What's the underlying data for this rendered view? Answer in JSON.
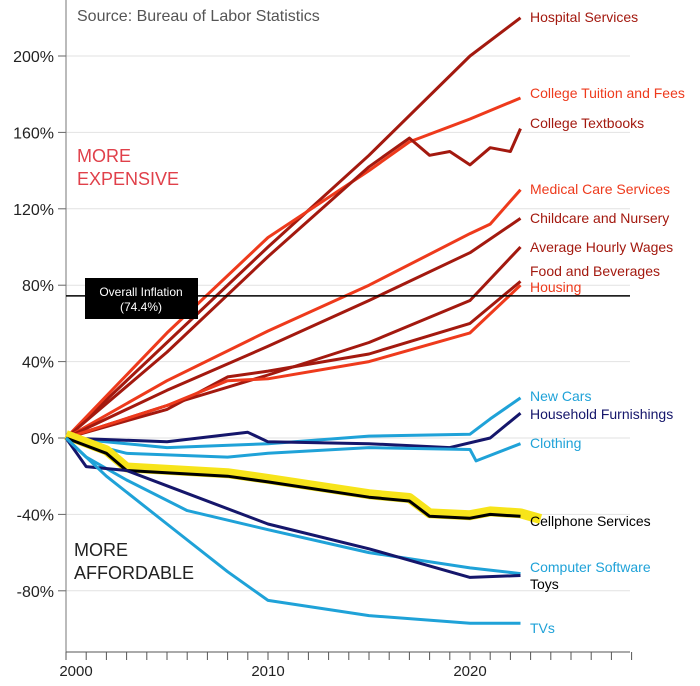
{
  "chart_data": {
    "type": "line",
    "source": "Source: Bureau of Labor Statistics",
    "annotations": {
      "up": [
        "MORE",
        "EXPENSIVE"
      ],
      "down": [
        "MORE",
        "AFFORDABLE"
      ]
    },
    "reference_line": {
      "label": "Overall Inflation",
      "value_label": "(74.4%)",
      "value": 74.4
    },
    "xlim": [
      2000,
      2028
    ],
    "ylim": [
      -110,
      230
    ],
    "x_ticks": [
      2000,
      2010,
      2020
    ],
    "y_ticks": [
      -80,
      -40,
      0,
      40,
      80,
      120,
      160,
      200
    ],
    "y_tick_labels": [
      "-80%",
      "-40%",
      "0%",
      "40%",
      "80%",
      "120%",
      "160%",
      "200%"
    ],
    "grid": "horizontal",
    "colors": {
      "dark_red": "#a3190f",
      "red": "#ee3a1c",
      "light_blue": "#1fa2d8",
      "navy": "#15166b",
      "black": "#000000",
      "highlight": "#f7e41a"
    },
    "series": [
      {
        "name": "Hospital Services",
        "color": "dark_red",
        "x": [
          2000,
          2005,
          2010,
          2015,
          2020,
          2022.5
        ],
        "y": [
          0,
          50,
          100,
          148,
          200,
          220
        ]
      },
      {
        "name": "College Tuition and Fees",
        "color": "red",
        "x": [
          2000,
          2005,
          2010,
          2015,
          2017,
          2020,
          2022.5
        ],
        "y": [
          0,
          55,
          105,
          140,
          155,
          167,
          178
        ]
      },
      {
        "name": "College Textbooks",
        "color": "dark_red",
        "x": [
          2000,
          2005,
          2010,
          2015,
          2017,
          2018,
          2019,
          2020,
          2021,
          2022,
          2022.5
        ],
        "y": [
          0,
          45,
          95,
          142,
          157,
          148,
          150,
          143,
          152,
          150,
          162
        ]
      },
      {
        "name": "Medical Care Services",
        "color": "red",
        "x": [
          2000,
          2005,
          2010,
          2015,
          2020,
          2021,
          2022.5
        ],
        "y": [
          0,
          30,
          56,
          80,
          107,
          112,
          130
        ]
      },
      {
        "name": "Childcare and Nursery",
        "color": "dark_red",
        "x": [
          2000,
          2005,
          2010,
          2015,
          2020,
          2022.5
        ],
        "y": [
          0,
          25,
          48,
          72,
          97,
          115
        ]
      },
      {
        "name": "Average Hourly Wages",
        "color": "dark_red",
        "x": [
          2000,
          2005,
          2010,
          2015,
          2020,
          2022.5
        ],
        "y": [
          0,
          17,
          33,
          50,
          72,
          100
        ]
      },
      {
        "name": "Food and Beverages",
        "color": "dark_red",
        "x": [
          2000,
          2005,
          2008,
          2010,
          2015,
          2020,
          2022.5
        ],
        "y": [
          0,
          15,
          32,
          35,
          44,
          60,
          82
        ]
      },
      {
        "name": "Housing",
        "color": "red",
        "x": [
          2000,
          2005,
          2008,
          2010,
          2015,
          2020,
          2022.5
        ],
        "y": [
          0,
          17,
          30,
          31,
          40,
          55,
          80
        ]
      },
      {
        "name": "New Cars",
        "color": "light_blue",
        "x": [
          2000,
          2005,
          2010,
          2015,
          2020,
          2021,
          2022.5
        ],
        "y": [
          0,
          -5,
          -3,
          1,
          2,
          10,
          21
        ]
      },
      {
        "name": "Household Furnishings",
        "color": "navy",
        "x": [
          2000,
          2005,
          2009,
          2010,
          2015,
          2019,
          2021,
          2022.5
        ],
        "y": [
          0,
          -2,
          3,
          -2,
          -3,
          -5,
          0,
          13
        ]
      },
      {
        "name": "Clothing",
        "color": "light_blue",
        "x": [
          2000,
          2003,
          2008,
          2010,
          2015,
          2020,
          2020.3,
          2022.5
        ],
        "y": [
          0,
          -8,
          -10,
          -8,
          -5,
          -6,
          -12,
          -3
        ]
      },
      {
        "name": "Cellphone Services",
        "color": "black",
        "highlight": true,
        "x": [
          2000,
          2002,
          2003,
          2008,
          2010,
          2015,
          2017,
          2018,
          2020,
          2021,
          2022.5
        ],
        "y": [
          0,
          -8,
          -17,
          -20,
          -23,
          -31,
          -33,
          -41,
          -42,
          -40,
          -41
        ]
      },
      {
        "name": "Computer Software",
        "color": "light_blue",
        "x": [
          2000,
          2001,
          2003,
          2006,
          2010,
          2015,
          2020,
          2022.5
        ],
        "y": [
          0,
          -10,
          -22,
          -38,
          -48,
          -60,
          -68,
          -71
        ]
      },
      {
        "name": "Toys",
        "color": "navy",
        "x": [
          2000,
          2001,
          2003,
          2005,
          2010,
          2015,
          2020,
          2022.5
        ],
        "y": [
          0,
          -15,
          -17,
          -25,
          -45,
          -58,
          -73,
          -72
        ]
      },
      {
        "name": "TVs",
        "color": "light_blue",
        "x": [
          2000,
          2002,
          2005,
          2008,
          2010,
          2015,
          2020,
          2022.5
        ],
        "y": [
          0,
          -20,
          -45,
          -70,
          -85,
          -93,
          -97,
          -97
        ]
      }
    ],
    "label_colors": {
      "Hospital Services": "dark_red",
      "College Tuition and Fees": "red",
      "College Textbooks": "dark_red",
      "Medical Care Services": "red",
      "Childcare and Nursery": "dark_red",
      "Average Hourly Wages": "dark_red",
      "Food and Beverages": "dark_red",
      "Housing": "red",
      "New Cars": "light_blue",
      "Household Furnishings": "navy",
      "Clothing": "light_blue",
      "Cellphone Services": "black",
      "Computer Software": "light_blue",
      "Toys": "black",
      "TVs": "light_blue"
    }
  }
}
